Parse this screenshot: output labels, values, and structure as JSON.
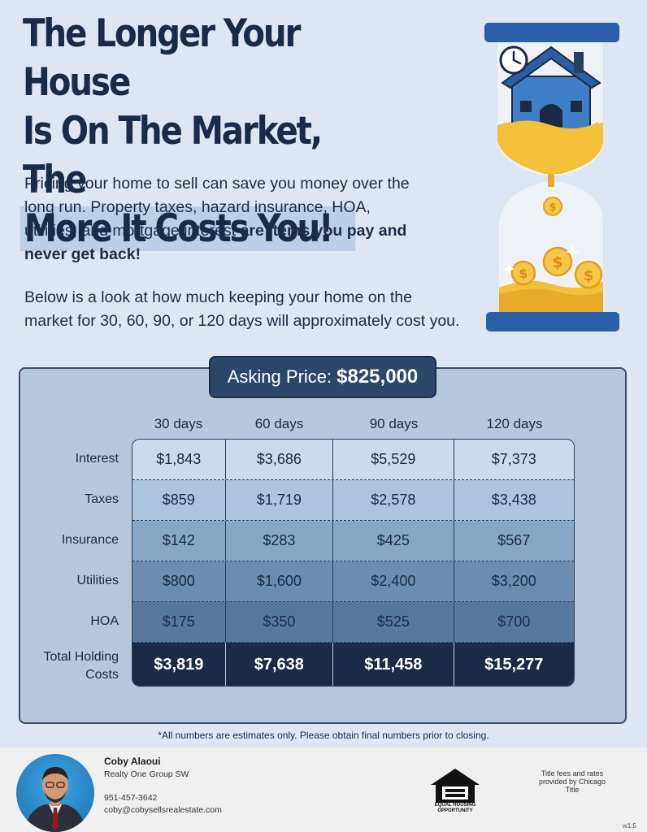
{
  "title": {
    "line1": "The Longer Your House",
    "line2": "Is On The Market, The",
    "line3": "More It Costs You!"
  },
  "intro": {
    "text_plain": "Pricing your home to sell can save you money over the long run. Property taxes, hazard insurance, HOA, utilities, and mortgage interest",
    "text_bold": "are items you pay and never get back!"
  },
  "intro2": "Below is a look at how much keeping your home on the market for 30, 60, 90, or 120 days will approximately cost you.",
  "asking": {
    "label": "Asking Price:",
    "value": "$825,000"
  },
  "table": {
    "columns": [
      "30 days",
      "60 days",
      "90 days",
      "120 days"
    ],
    "rows": [
      {
        "label": "Interest",
        "values": [
          "$1,843",
          "$3,686",
          "$5,529",
          "$7,373"
        ]
      },
      {
        "label": "Taxes",
        "values": [
          "$859",
          "$1,719",
          "$2,578",
          "$3,438"
        ]
      },
      {
        "label": "Insurance",
        "values": [
          "$142",
          "$283",
          "$425",
          "$567"
        ]
      },
      {
        "label": "Utilities",
        "values": [
          "$800",
          "$1,600",
          "$2,400",
          "$3,200"
        ]
      },
      {
        "label": "HOA",
        "values": [
          "$175",
          "$350",
          "$525",
          "$700"
        ]
      }
    ],
    "total": {
      "label_line1": "Total Holding",
      "label_line2": "Costs",
      "values": [
        "$3,819",
        "$7,638",
        "$11,458",
        "$15,277"
      ]
    }
  },
  "footnote": "*All numbers are estimates only. Please obtain final numbers prior to closing.",
  "agent": {
    "name": "Coby Alaoui",
    "company": "Realty One Group SW",
    "phone": "951-457-3642",
    "email": "coby@cobysellsrealestate.com"
  },
  "equal_housing": {
    "line1": "EQUAL HOUSING",
    "line2": "OPPORTUNITY",
    "icon": "equal-housing-icon"
  },
  "title_note": "Title fees and rates provided by Chicago Title",
  "version": "w1.5",
  "colors": {
    "background": "#dde6f2",
    "navy": "#1b2b45",
    "panel": "#b7c8dd",
    "gold": "#f4c03a",
    "house_blue": "#3f7fc6"
  }
}
